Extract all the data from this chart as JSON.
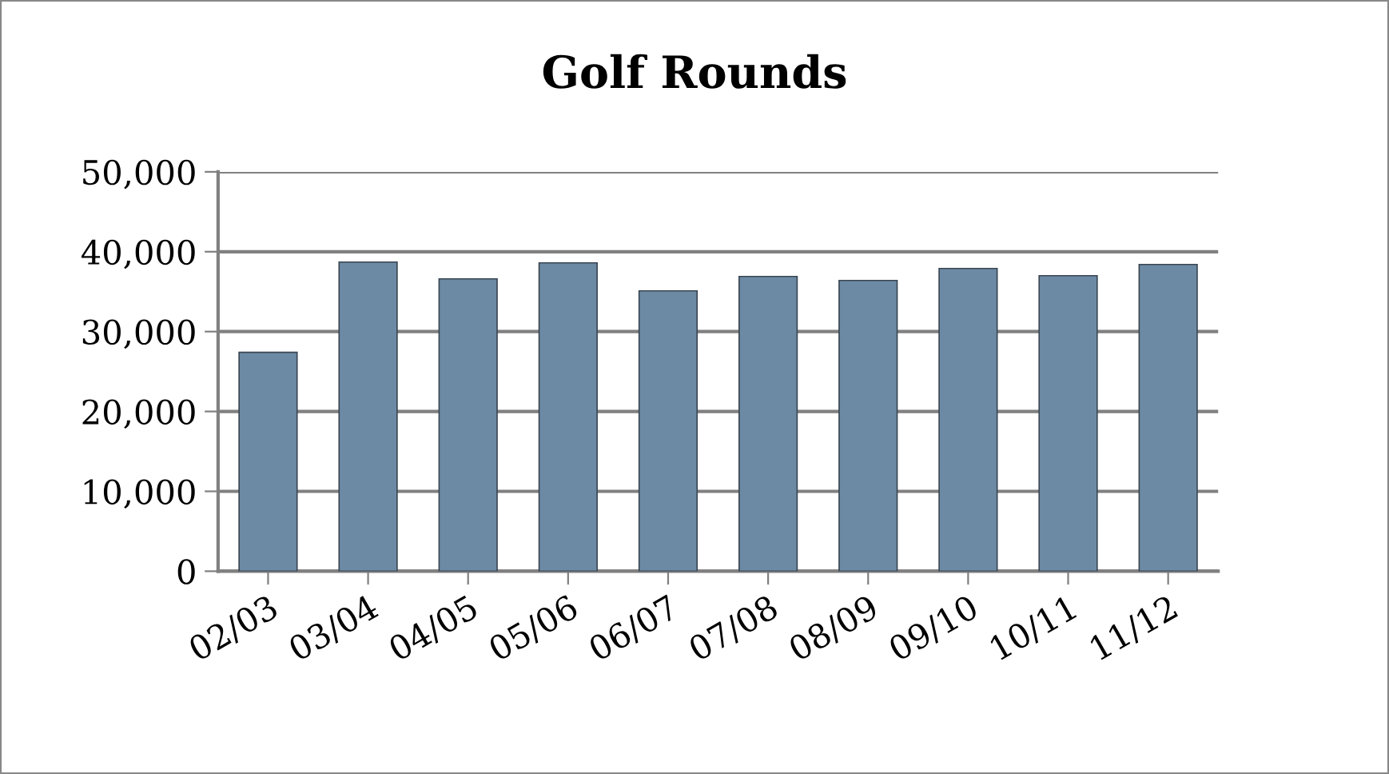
{
  "chart_data": {
    "type": "bar",
    "title": "Golf Rounds",
    "categories": [
      "02/03",
      "03/04",
      "04/05",
      "05/06",
      "06/07",
      "07/08",
      "08/09",
      "09/10",
      "10/11",
      "11/12"
    ],
    "values": [
      27400,
      38700,
      36600,
      38600,
      35100,
      36900,
      36400,
      37900,
      37000,
      38400
    ],
    "color": "#6d8aa5",
    "ylim": [
      0,
      50000
    ],
    "yticks": [
      {
        "value": 0,
        "label": "0"
      },
      {
        "value": 10000,
        "label": "10,000"
      },
      {
        "value": 20000,
        "label": "20,000"
      },
      {
        "value": 30000,
        "label": "30,000"
      },
      {
        "value": 40000,
        "label": "40,000"
      },
      {
        "value": 50000,
        "label": "50,000"
      }
    ],
    "grid": "y",
    "legend": false
  }
}
